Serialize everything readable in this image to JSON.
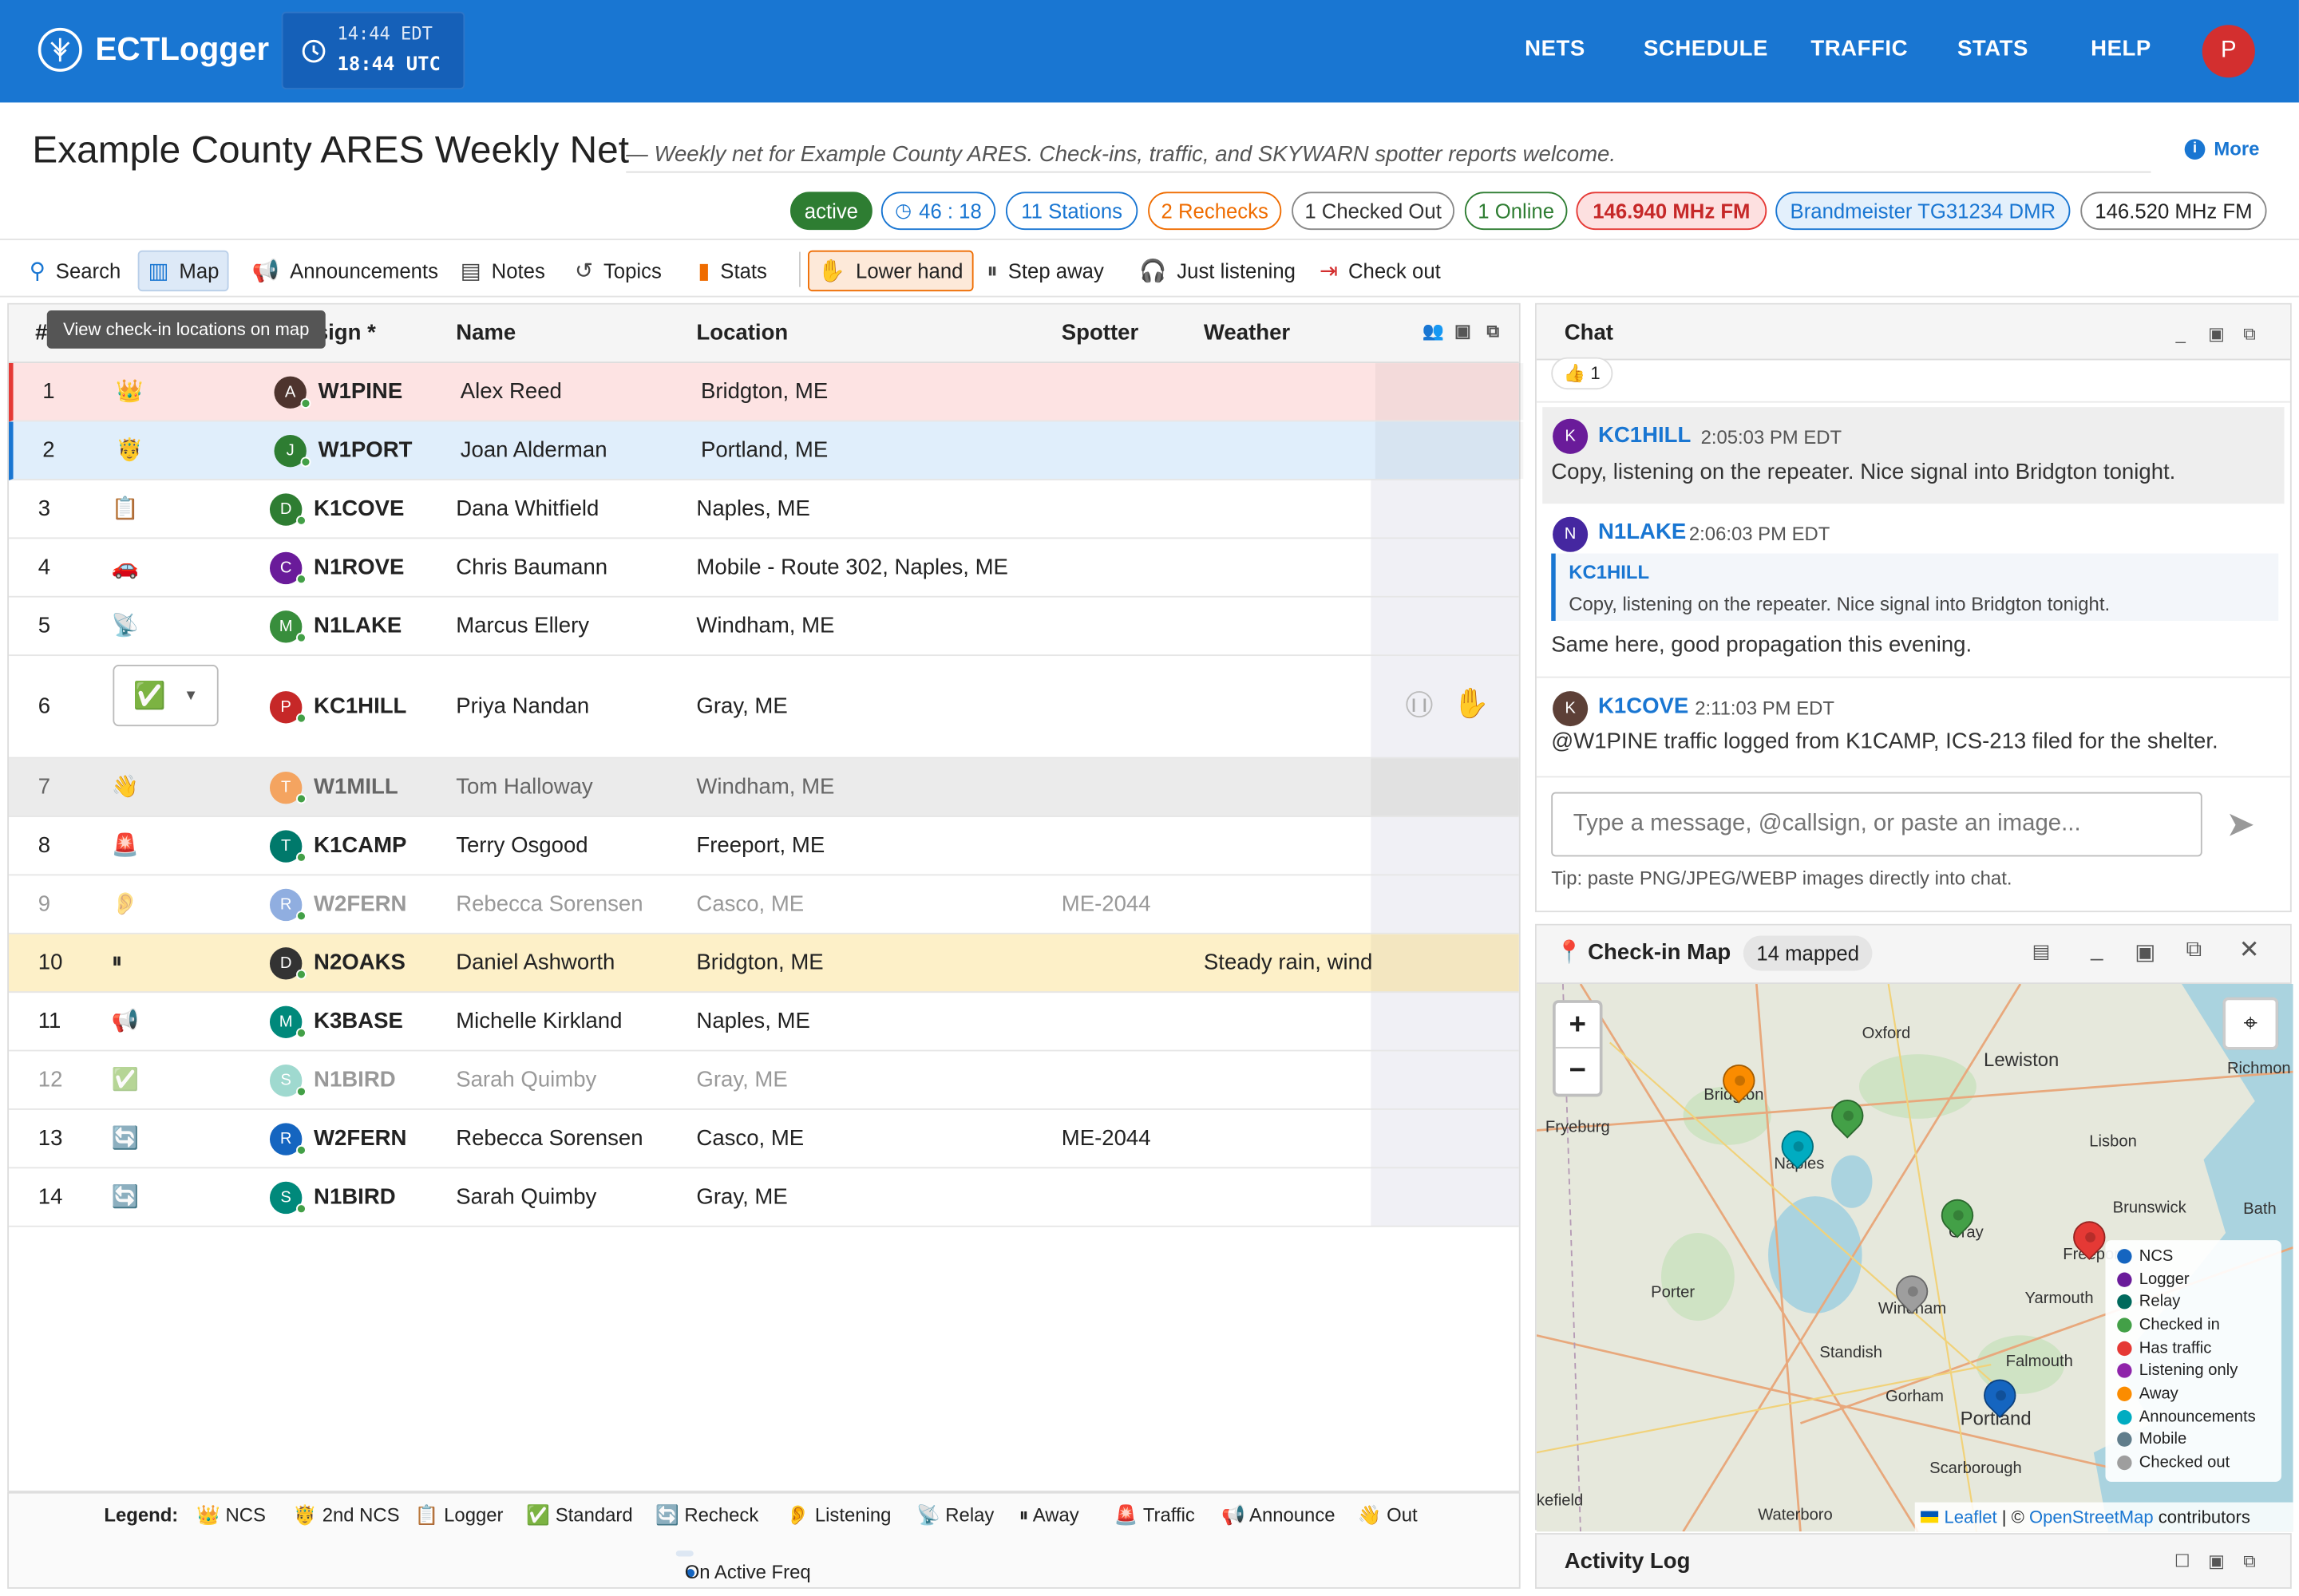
{
  "app": {
    "brand": "ECTLogger",
    "clock_local": "14:44 EDT",
    "clock_utc": "18:44 UTC",
    "nav": [
      "NETS",
      "SCHEDULE",
      "TRAFFIC",
      "STATS",
      "HELP"
    ],
    "user_initial": "P"
  },
  "net": {
    "title": "Example County ARES Weekly Net",
    "subtitle": "— Weekly net for Example County ARES. Check-ins, traffic, and SKYWARN spotter reports welcome.",
    "more": "More",
    "chips": {
      "status": "active",
      "timer": "46 : 18",
      "stations": "11 Stations",
      "rechecks": "2 Rechecks",
      "checked_out": "1 Checked Out",
      "online": "1 Online",
      "freq1": "146.940 MHz FM",
      "freq2": "Brandmeister TG31234 DMR",
      "freq3": "146.520 MHz FM"
    }
  },
  "toolbar": {
    "search": "Search",
    "map": "Map",
    "announcements": "Announcements",
    "notes": "Notes",
    "topics": "Topics",
    "stats": "Stats",
    "lower_hand": "Lower hand",
    "step_away": "Step away",
    "just_listening": "Just listening",
    "check_out": "Check out"
  },
  "tooltip": "View check-in locations on map",
  "grid": {
    "headers": {
      "num": "#",
      "callsign": "Callsign *",
      "name": "Name",
      "location": "Location",
      "spotter": "Spotter",
      "weather": "Weather"
    },
    "rows": [
      {
        "n": "1",
        "icon": "👑",
        "av": "A",
        "avc": "#4e342e",
        "cs": "W1PINE",
        "name": "Alex Reed",
        "loc": "Bridgton, ME",
        "sp": "",
        "wx": ""
      },
      {
        "n": "2",
        "icon": "🤴",
        "av": "J",
        "avc": "#2e7d32",
        "cs": "W1PORT",
        "name": "Joan Alderman",
        "loc": "Portland, ME",
        "sp": "",
        "wx": ""
      },
      {
        "n": "3",
        "icon": "📋",
        "av": "D",
        "avc": "#2e7d32",
        "cs": "K1COVE",
        "name": "Dana Whitfield",
        "loc": "Naples, ME",
        "sp": "",
        "wx": ""
      },
      {
        "n": "4",
        "icon": "🚗",
        "av": "C",
        "avc": "#6a1b9a",
        "cs": "N1ROVE",
        "name": "Chris Baumann",
        "loc": "Mobile - Route 302, Naples, ME",
        "sp": "",
        "wx": ""
      },
      {
        "n": "5",
        "icon": "📡",
        "av": "M",
        "avc": "#388e3c",
        "cs": "N1LAKE",
        "name": "Marcus Ellery",
        "loc": "Windham, ME",
        "sp": "",
        "wx": ""
      },
      {
        "n": "6",
        "icon": "",
        "av": "P",
        "avc": "#c62828",
        "cs": "KC1HILL",
        "name": "Priya Nandan",
        "loc": "Gray, ME",
        "sp": "",
        "wx": ""
      },
      {
        "n": "7",
        "icon": "👋",
        "av": "T",
        "avc": "#f4a460",
        "cs": "W1MILL",
        "name": "Tom Halloway",
        "loc": "Windham, ME",
        "sp": "",
        "wx": ""
      },
      {
        "n": "8",
        "icon": "🚨",
        "av": "T",
        "avc": "#00796b",
        "cs": "K1CAMP",
        "name": "Terry Osgood",
        "loc": "Freeport, ME",
        "sp": "",
        "wx": ""
      },
      {
        "n": "9",
        "icon": "👂",
        "av": "R",
        "avc": "#90aee0",
        "cs": "W2FERN",
        "name": "Rebecca Sorensen",
        "loc": "Casco, ME",
        "sp": "ME-2044",
        "wx": ""
      },
      {
        "n": "10",
        "icon": "⏸",
        "av": "D",
        "avc": "#333",
        "cs": "N2OAKS",
        "name": "Daniel Ashworth",
        "loc": "Bridgton, ME",
        "sp": "",
        "wx": "Steady rain, wind"
      },
      {
        "n": "11",
        "icon": "📢",
        "av": "M",
        "avc": "#00897b",
        "cs": "K3BASE",
        "name": "Michelle Kirkland",
        "loc": "Naples, ME",
        "sp": "",
        "wx": ""
      },
      {
        "n": "12",
        "icon": "✅",
        "av": "S",
        "avc": "#9fd9cf",
        "cs": "N1BIRD",
        "name": "Sarah Quimby",
        "loc": "Gray, ME",
        "sp": "",
        "wx": ""
      },
      {
        "n": "13",
        "icon": "🔄",
        "av": "R",
        "avc": "#1565c0",
        "cs": "W2FERN",
        "name": "Rebecca Sorensen",
        "loc": "Casco, ME",
        "sp": "ME-2044",
        "wx": ""
      },
      {
        "n": "14",
        "icon": "🔄",
        "av": "S",
        "avc": "#00897b",
        "cs": "N1BIRD",
        "name": "Sarah Quimby",
        "loc": "Gray, ME",
        "sp": "",
        "wx": ""
      }
    ],
    "row6_select": "✅"
  },
  "legend": {
    "title": "Legend:",
    "items": [
      "👑 NCS",
      "🤴 2nd NCS",
      "📋 Logger",
      "✅ Standard",
      "🔄 Recheck",
      "👂 Listening",
      "📡 Relay",
      "⏸ Away",
      "🚨 Traffic",
      "📢 Announce",
      "👋 Out"
    ],
    "active_freq": "On Active Freq"
  },
  "chat": {
    "title": "Chat",
    "reaction": "👍 1",
    "messages": [
      {
        "av": "K",
        "avc": "#6a1b9a",
        "name": "KC1HILL",
        "time": "2:05:03 PM EDT",
        "body": "Copy, listening on the repeater. Nice signal into Bridgton tonight."
      },
      {
        "av": "N",
        "avc": "#4527a0",
        "name": "N1LAKE",
        "time": "2:06:03 PM EDT",
        "quote_name": "KC1HILL",
        "quote_body": "Copy, listening on the repeater. Nice signal into Bridgton tonight.",
        "body": "Same here, good propagation this evening."
      },
      {
        "av": "K",
        "avc": "#5d4037",
        "name": "K1COVE",
        "time": "2:11:03 PM EDT",
        "body": "@W1PINE traffic logged from K1CAMP, ICS-213 filed for the shelter."
      }
    ],
    "input_placeholder": "Type a message, @callsign, or paste an image...",
    "tip": "Tip: paste PNG/JPEG/WEBP images directly into chat."
  },
  "map": {
    "title": "Check-in Map",
    "mapped": "14 mapped",
    "places": [
      "Oxford",
      "Lewiston",
      "Richmon",
      "Bridgton",
      "Fryeburg",
      "Naples",
      "Lisbon",
      "Brunswick",
      "Bath",
      "Gray",
      "Freeport",
      "Porter",
      "Windham",
      "Yarmouth",
      "Standish",
      "Gorham",
      "Falmouth",
      "Portland",
      "Scarborough",
      "Waterboro",
      "kefield"
    ],
    "legend": [
      {
        "label": "NCS",
        "color": "#1565c0"
      },
      {
        "label": "Logger",
        "color": "#6a1b9a"
      },
      {
        "label": "Relay",
        "color": "#00695c"
      },
      {
        "label": "Checked in",
        "color": "#43a047"
      },
      {
        "label": "Has traffic",
        "color": "#e53935"
      },
      {
        "label": "Listening only",
        "color": "#8e24aa"
      },
      {
        "label": "Away",
        "color": "#fb8c00"
      },
      {
        "label": "Announcements",
        "color": "#00acc1"
      },
      {
        "label": "Mobile",
        "color": "#607d8b"
      },
      {
        "label": "Checked out",
        "color": "#9e9e9e"
      }
    ],
    "attribution_leaflet": "Leaflet",
    "attribution_sep": " | © ",
    "attribution_osm": "OpenStreetMap",
    "attribution_tail": " contributors"
  },
  "activity": {
    "title": "Activity Log"
  }
}
